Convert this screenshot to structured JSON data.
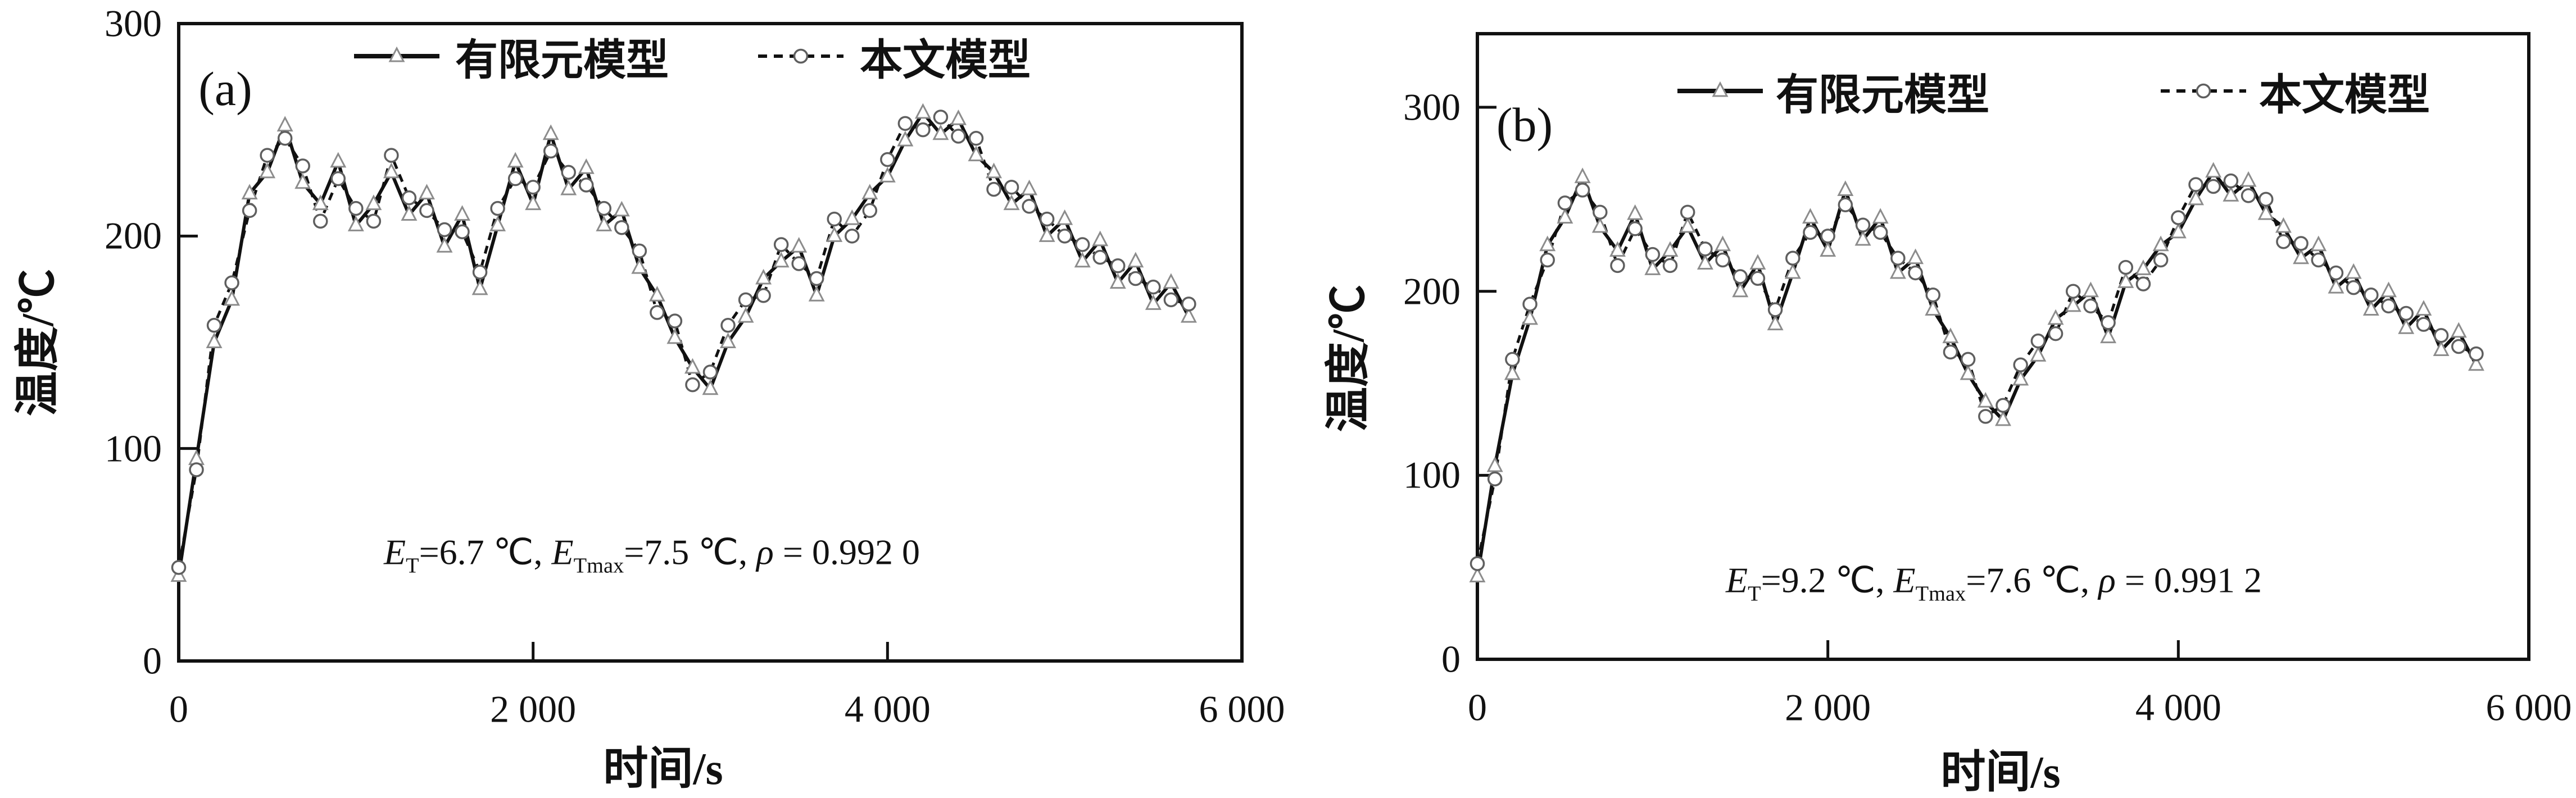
{
  "figure": {
    "background": "#ffffff",
    "ink": "#111111",
    "marker_fill": "#ffffff",
    "triangle_edge": "#8c8c8c",
    "circle_edge": "#5f5f5f"
  },
  "chart_data": [
    {
      "type": "line",
      "panel": "(a)",
      "xlabel": "时间/s",
      "ylabel": "温度/℃",
      "xlim": [
        0,
        6000
      ],
      "ylim": [
        0,
        300
      ],
      "x_ticks": [
        0,
        2000,
        4000,
        6000
      ],
      "x_tick_labels": [
        "0",
        "2 000",
        "4 000",
        "6 000"
      ],
      "y_ticks": [
        0,
        100,
        200,
        300
      ],
      "y_tick_labels": [
        "0",
        "100",
        "200",
        "300"
      ],
      "grid": false,
      "legend_position": "top-inside",
      "x": [
        0,
        100,
        200,
        300,
        400,
        500,
        600,
        700,
        800,
        900,
        1000,
        1100,
        1200,
        1300,
        1400,
        1500,
        1600,
        1700,
        1800,
        1900,
        2000,
        2100,
        2200,
        2300,
        2400,
        2500,
        2600,
        2700,
        2800,
        2900,
        3000,
        3100,
        3200,
        3300,
        3400,
        3500,
        3600,
        3700,
        3800,
        3900,
        4000,
        4100,
        4200,
        4300,
        4400,
        4500,
        4600,
        4700,
        4800,
        4900,
        5000,
        5100,
        5200,
        5300,
        5400,
        5500,
        5600,
        5700
      ],
      "series": [
        {
          "name": "有限元模型",
          "marker": "triangle",
          "line": "solid",
          "values": [
            40,
            95,
            150,
            170,
            220,
            230,
            252,
            225,
            215,
            235,
            205,
            215,
            230,
            210,
            220,
            195,
            210,
            175,
            205,
            235,
            215,
            248,
            222,
            232,
            205,
            212,
            185,
            172,
            152,
            138,
            128,
            150,
            162,
            180,
            188,
            195,
            172,
            200,
            208,
            220,
            228,
            245,
            258,
            248,
            255,
            238,
            230,
            215,
            222,
            200,
            208,
            188,
            198,
            178,
            188,
            168,
            178,
            162
          ]
        },
        {
          "name": "本文模型",
          "marker": "circle",
          "line": "dashed",
          "values": [
            44,
            90,
            158,
            178,
            212,
            238,
            246,
            233,
            207,
            227,
            213,
            207,
            238,
            218,
            212,
            203,
            202,
            183,
            213,
            227,
            223,
            240,
            230,
            224,
            213,
            204,
            193,
            164,
            160,
            130,
            136,
            158,
            170,
            172,
            196,
            187,
            180,
            208,
            200,
            212,
            236,
            253,
            250,
            256,
            247,
            246,
            222,
            223,
            214,
            208,
            200,
            196,
            190,
            186,
            180,
            176,
            170,
            168
          ]
        }
      ],
      "annotation": {
        "plain": "E_T=6.7 ℃, E_Tmax=7.5 ℃, ρ = 0.992 0",
        "segments": [
          {
            "text": "E",
            "style": "italic"
          },
          {
            "text": "T",
            "style": "sub"
          },
          {
            "text": "=6.7 ℃, ",
            "style": "normal"
          },
          {
            "text": "E",
            "style": "italic"
          },
          {
            "text": "Tmax",
            "style": "sub"
          },
          {
            "text": "=7.5 ℃,  ",
            "style": "normal"
          },
          {
            "text": "ρ",
            "style": "italic"
          },
          {
            "text": " = 0.992 0",
            "style": "normal"
          }
        ]
      }
    },
    {
      "type": "line",
      "panel": "(b)",
      "xlabel": "时间/s",
      "ylabel": "温度/℃",
      "xlim": [
        0,
        6000
      ],
      "ylim": [
        0,
        340
      ],
      "x_ticks": [
        0,
        2000,
        4000,
        6000
      ],
      "x_tick_labels": [
        "0",
        "2 000",
        "4 000",
        "6 000"
      ],
      "y_ticks": [
        0,
        100,
        200,
        300
      ],
      "y_tick_labels": [
        "0",
        "100",
        "200",
        "300"
      ],
      "grid": false,
      "legend_position": "top-inside",
      "x": [
        0,
        100,
        200,
        300,
        400,
        500,
        600,
        700,
        800,
        900,
        1000,
        1100,
        1200,
        1300,
        1400,
        1500,
        1600,
        1700,
        1800,
        1900,
        2000,
        2100,
        2200,
        2300,
        2400,
        2500,
        2600,
        2700,
        2800,
        2900,
        3000,
        3100,
        3200,
        3300,
        3400,
        3500,
        3600,
        3700,
        3800,
        3900,
        4000,
        4100,
        4200,
        4300,
        4400,
        4500,
        4600,
        4700,
        4800,
        4900,
        5000,
        5100,
        5200,
        5300,
        5400,
        5500,
        5600,
        5700
      ],
      "series": [
        {
          "name": "有限元模型",
          "marker": "triangle",
          "line": "solid",
          "values": [
            45,
            105,
            155,
            185,
            225,
            240,
            262,
            235,
            222,
            242,
            212,
            222,
            235,
            215,
            225,
            200,
            215,
            182,
            210,
            240,
            222,
            255,
            228,
            240,
            210,
            218,
            190,
            175,
            155,
            140,
            130,
            152,
            165,
            185,
            192,
            200,
            175,
            205,
            212,
            225,
            232,
            250,
            265,
            252,
            260,
            242,
            235,
            218,
            225,
            202,
            210,
            190,
            200,
            180,
            190,
            168,
            178,
            160
          ]
        },
        {
          "name": "本文模型",
          "marker": "circle",
          "line": "dashed",
          "values": [
            52,
            98,
            163,
            193,
            217,
            248,
            255,
            243,
            214,
            234,
            220,
            214,
            243,
            223,
            217,
            208,
            207,
            190,
            218,
            232,
            230,
            247,
            236,
            232,
            218,
            210,
            198,
            167,
            163,
            132,
            138,
            160,
            173,
            177,
            200,
            192,
            183,
            213,
            204,
            217,
            240,
            258,
            257,
            260,
            252,
            250,
            227,
            226,
            217,
            210,
            202,
            198,
            192,
            188,
            182,
            176,
            170,
            166
          ]
        }
      ],
      "annotation": {
        "plain": "E_T=9.2 ℃, E_Tmax=7.6 ℃, ρ = 0.991 2",
        "segments": [
          {
            "text": "E",
            "style": "italic"
          },
          {
            "text": "T",
            "style": "sub"
          },
          {
            "text": "=9.2 ℃, ",
            "style": "normal"
          },
          {
            "text": "E",
            "style": "italic"
          },
          {
            "text": "Tmax",
            "style": "sub"
          },
          {
            "text": "=7.6 ℃,  ",
            "style": "normal"
          },
          {
            "text": "ρ",
            "style": "italic"
          },
          {
            "text": " = 0.991 2",
            "style": "normal"
          }
        ]
      }
    }
  ]
}
